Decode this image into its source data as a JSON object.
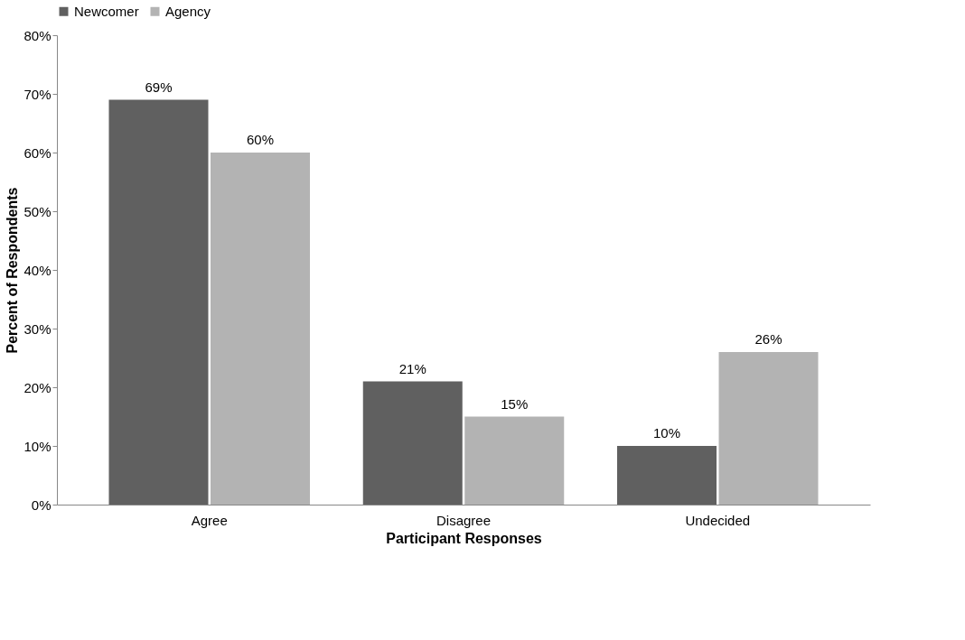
{
  "chart_data": {
    "type": "bar",
    "xlabel": "Participant Responses",
    "ylabel": "Percent of Respondents",
    "categories": [
      "Agree",
      "Disagree",
      "Undecided"
    ],
    "series": [
      {
        "name": "Newcomer",
        "color": "#606060",
        "values": [
          69,
          21,
          10
        ],
        "value_labels": [
          "69%",
          "21%",
          "10%"
        ]
      },
      {
        "name": "Agency",
        "color": "#b3b3b3",
        "values": [
          60,
          15,
          26
        ],
        "value_labels": [
          "60%",
          "15%",
          "26%"
        ]
      }
    ],
    "ylim": [
      0,
      80
    ],
    "yticks": [
      {
        "value": 0,
        "label": "0%"
      },
      {
        "value": 10,
        "label": "10%"
      },
      {
        "value": 20,
        "label": "20%"
      },
      {
        "value": 30,
        "label": "30%"
      },
      {
        "value": 40,
        "label": "40%"
      },
      {
        "value": 50,
        "label": "50%"
      },
      {
        "value": 60,
        "label": "60%"
      },
      {
        "value": 70,
        "label": "70%"
      },
      {
        "value": 80,
        "label": "80%"
      }
    ],
    "grid": false,
    "legend": "top"
  }
}
